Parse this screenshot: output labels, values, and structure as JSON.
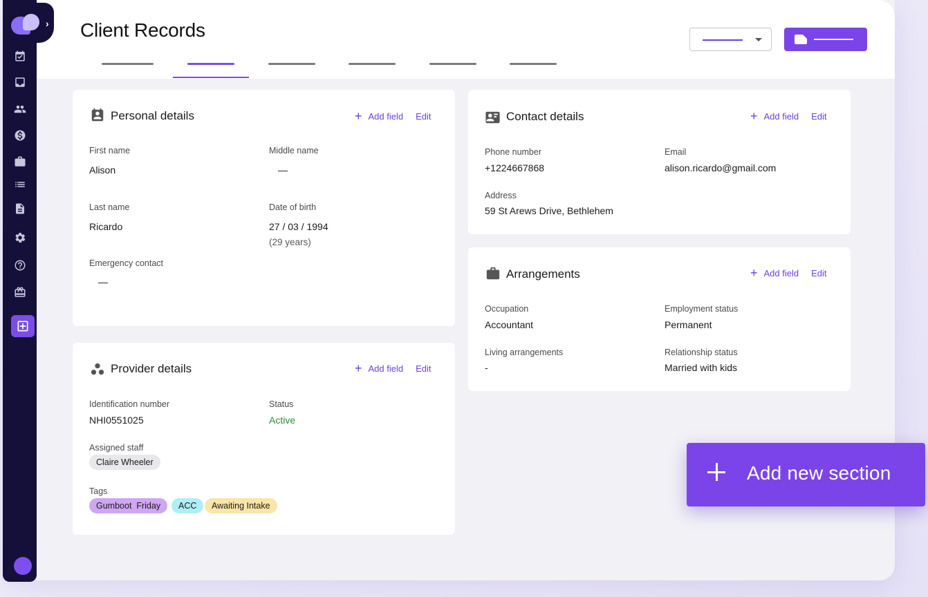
{
  "header": {
    "title": "Client Records",
    "tabs": [
      "",
      "",
      "",
      "",
      "",
      ""
    ],
    "active_tab_index": 1
  },
  "sidebar": {
    "items": [
      {
        "icon": "calendar-check-icon"
      },
      {
        "icon": "inbox-icon"
      },
      {
        "icon": "people-icon"
      },
      {
        "icon": "dollar-icon"
      },
      {
        "icon": "briefcase-icon"
      },
      {
        "icon": "list-icon"
      },
      {
        "icon": "document-icon"
      },
      {
        "icon": "gear-icon"
      },
      {
        "icon": "help-icon"
      },
      {
        "icon": "gift-icon"
      },
      {
        "icon": "add-box-icon",
        "active": true
      }
    ]
  },
  "personal": {
    "title": "Personal details",
    "add_field": "Add field",
    "edit": "Edit",
    "first_name_label": "First name",
    "first_name": "Alison",
    "middle_name_label": "Middle name",
    "middle_name": "—",
    "last_name_label": "Last name",
    "last_name": "Ricardo",
    "dob_label": "Date of birth",
    "dob": "27 / 03 / 1994",
    "age": "(29 years)",
    "emergency_label": "Emergency contact",
    "emergency": "—"
  },
  "contact": {
    "title": "Contact details",
    "add_field": "Add field",
    "edit": "Edit",
    "phone_label": "Phone number",
    "phone": "+1224667868",
    "email_label": "Email",
    "email": "alison.ricardo@gmail.com",
    "address_label": "Address",
    "address": "59 St Arews Drive, Bethlehem"
  },
  "arrangements": {
    "title": "Arrangements",
    "add_field": "Add field",
    "edit": "Edit",
    "occupation_label": "Occupation",
    "occupation": "Accountant",
    "employment_label": "Employment status",
    "employment": "Permanent",
    "living_label": "Living arrangements",
    "living": "-",
    "relationship_label": "Relationship status",
    "relationship": "Married with kids"
  },
  "provider": {
    "title": "Provider details",
    "add_field": "Add field",
    "edit": "Edit",
    "id_label": "Identification number",
    "id": "NHI0551025",
    "status_label": "Status",
    "status": "Active",
    "staff_label": "Assigned staff",
    "staff": "Claire Wheeler",
    "tags_label": "Tags",
    "tags": [
      {
        "label": "Gumboot  Friday",
        "color": "#cfa6f2"
      },
      {
        "label": "ACC",
        "color": "#aeeef5"
      },
      {
        "label": "Awaiting Intake",
        "color": "#f8e6a8"
      }
    ]
  },
  "fab": {
    "label": "Add new section"
  },
  "colors": {
    "accent": "#7a44e8",
    "sidebar": "#15103a",
    "status_active": "#2e8b3a"
  }
}
